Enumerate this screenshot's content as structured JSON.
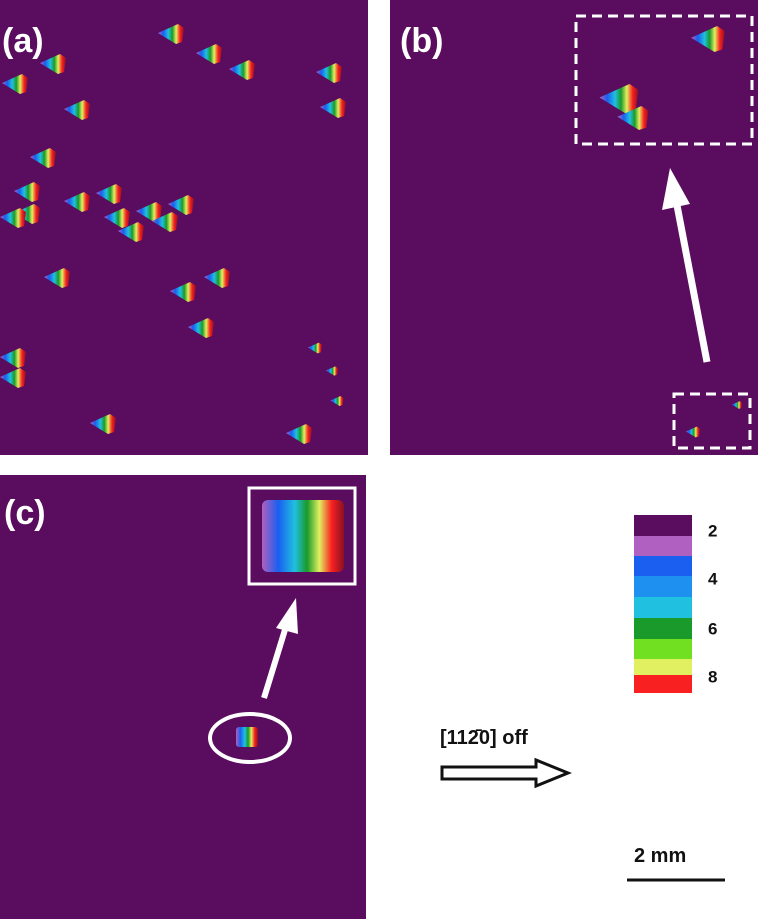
{
  "panels": {
    "a": {
      "label": "(a)"
    },
    "b": {
      "label": "(b)"
    },
    "c": {
      "label": "(c)"
    }
  },
  "colorbar": {
    "labels": [
      "2",
      "4",
      "6",
      "8"
    ]
  },
  "direction": {
    "label": "[112̄0] off"
  },
  "scale_bar": {
    "label": "2 mm"
  }
}
